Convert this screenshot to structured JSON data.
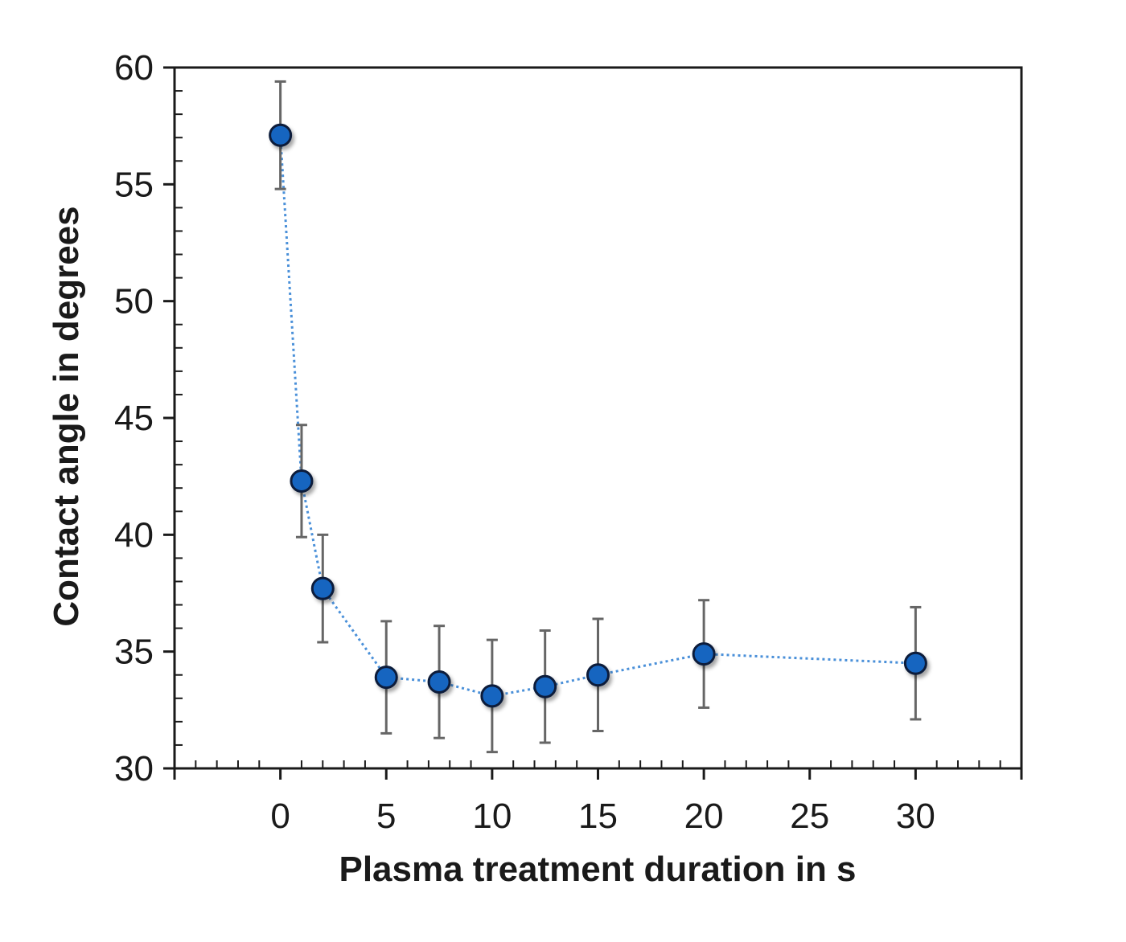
{
  "chart_data": {
    "type": "scatter",
    "title": "",
    "xlabel": "Plasma treatment duration in s",
    "ylabel": "Contact angle in degrees",
    "xlim": [
      -5,
      35
    ],
    "ylim": [
      30,
      60
    ],
    "x_ticks": [
      0,
      5,
      10,
      15,
      20,
      25,
      30
    ],
    "x_tick_labels": [
      "0",
      "5",
      "10",
      "15",
      "20",
      "25",
      "30"
    ],
    "y_ticks": [
      30,
      35,
      40,
      45,
      50,
      55,
      60
    ],
    "y_tick_labels": [
      "30",
      "35",
      "40",
      "45",
      "50",
      "55",
      "60"
    ],
    "grid": false,
    "series": [
      {
        "name": "Contact angle",
        "color": "#1565c0",
        "line_color": "#4a90d9",
        "line_style": "dotted",
        "x": [
          0,
          1,
          2,
          5,
          7.5,
          10,
          12.5,
          15,
          20,
          30
        ],
        "y": [
          57.1,
          42.3,
          37.7,
          33.9,
          33.7,
          33.1,
          33.5,
          34.0,
          34.9,
          34.5
        ],
        "error": [
          2.3,
          2.4,
          2.3,
          2.4,
          2.4,
          2.4,
          2.4,
          2.4,
          2.3,
          2.4
        ]
      }
    ]
  }
}
